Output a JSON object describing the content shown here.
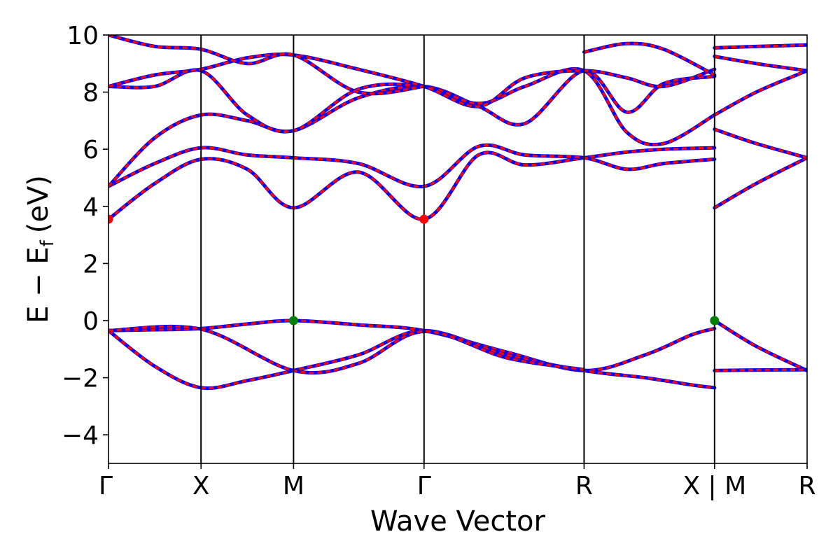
{
  "chart_data": {
    "type": "line",
    "title": "",
    "xlabel": "Wave Vector",
    "ylabel": "E − E",
    "ylabel_sub": "f",
    "ylabel_unit": "(eV)",
    "ylim": [
      -5,
      10
    ],
    "yticks": [
      -4,
      -2,
      0,
      2,
      4,
      6,
      8,
      10
    ],
    "ytick_labels": [
      "−4",
      "−2",
      "0",
      "2",
      "4",
      "6",
      "8",
      "10"
    ],
    "xlim": [
      0,
      7.5
    ],
    "kpoints": [
      {
        "x": 0,
        "label": "Γ"
      },
      {
        "x": 1.0,
        "label": "X"
      },
      {
        "x": 2.0,
        "label": "M"
      },
      {
        "x": 3.41,
        "label": "Γ"
      },
      {
        "x": 5.14,
        "label": "R"
      },
      {
        "x": 6.55,
        "label": "X | M"
      },
      {
        "x": 7.55,
        "label": "R"
      }
    ],
    "colors": {
      "band": "#ff0000",
      "overlay": "#0000ff",
      "cbm": "#ff0000",
      "vbm": "#008000",
      "frame": "#000000"
    },
    "bands": [
      {
        "name": "v1",
        "x": [
          0,
          0.5,
          1.0,
          1.5,
          2.0,
          2.7,
          3.41,
          4.3,
          5.14,
          5.8,
          6.3,
          6.55
        ],
        "y": [
          -0.35,
          -0.32,
          -0.28,
          -0.12,
          0.0,
          -0.15,
          -0.35,
          -1.1,
          -1.75,
          -1.2,
          -0.5,
          -0.28
        ]
      },
      {
        "name": "v2",
        "x": [
          0,
          0.5,
          1.0,
          1.5,
          2.0,
          2.7,
          3.41,
          4.3,
          5.14,
          5.8,
          6.3,
          6.55
        ],
        "y": [
          -0.35,
          -1.6,
          -2.35,
          -2.1,
          -1.75,
          -1.2,
          -0.35,
          -1.2,
          -1.75,
          -2.0,
          -2.25,
          -2.35
        ]
      },
      {
        "name": "v3",
        "x": [
          0,
          1.0,
          2.0,
          2.7,
          3.41,
          4.3,
          5.14
        ],
        "y": [
          -0.35,
          -0.3,
          -1.75,
          -1.5,
          -0.38,
          -1.3,
          -1.72
        ]
      },
      {
        "name": "vr1",
        "x": [
          6.55,
          7.0,
          7.55
        ],
        "y": [
          0.0,
          -0.9,
          -1.75
        ]
      },
      {
        "name": "vr2",
        "x": [
          6.55,
          7.0,
          7.55
        ],
        "y": [
          -1.75,
          -1.73,
          -1.72
        ]
      },
      {
        "name": "c1",
        "x": [
          0,
          0.5,
          1.0,
          1.5,
          2.0,
          2.7,
          3.41,
          4.0,
          4.5,
          5.14,
          5.6,
          6.0,
          6.55
        ],
        "y": [
          3.55,
          4.8,
          5.65,
          5.3,
          3.95,
          5.2,
          3.55,
          5.8,
          5.45,
          5.7,
          5.9,
          6.0,
          6.05
        ]
      },
      {
        "name": "c2",
        "x": [
          0,
          0.5,
          1.0,
          1.5,
          2.0,
          2.7,
          3.41,
          4.0,
          4.5,
          5.14,
          5.6,
          6.0,
          6.55
        ],
        "y": [
          4.7,
          5.5,
          6.05,
          5.8,
          5.7,
          5.5,
          4.7,
          6.1,
          5.8,
          5.7,
          5.3,
          5.5,
          5.65
        ]
      },
      {
        "name": "c3",
        "x": [
          0,
          0.5,
          1.0,
          1.5,
          2.0,
          2.7,
          3.41,
          4.0,
          4.5,
          5.14,
          5.6,
          6.0,
          6.55
        ],
        "y": [
          4.7,
          6.4,
          7.2,
          7.0,
          6.65,
          7.8,
          8.2,
          7.5,
          6.9,
          8.75,
          7.3,
          8.3,
          8.55
        ]
      },
      {
        "name": "c4",
        "x": [
          0,
          0.5,
          1.0,
          1.5,
          2.0,
          2.7,
          3.41,
          4.0,
          4.5,
          5.14,
          5.6,
          6.0,
          6.55
        ],
        "y": [
          8.2,
          8.2,
          8.75,
          7.2,
          6.65,
          8.1,
          8.2,
          7.6,
          8.2,
          8.75,
          6.6,
          6.2,
          7.2
        ]
      },
      {
        "name": "c5",
        "x": [
          0,
          0.5,
          1.0,
          1.5,
          2.0,
          2.7,
          3.41,
          4.0,
          4.5,
          5.14,
          5.6,
          6.0,
          6.55
        ],
        "y": [
          8.2,
          8.6,
          8.8,
          9.2,
          9.3,
          8.8,
          8.2,
          7.5,
          8.5,
          8.75,
          8.5,
          8.2,
          8.8
        ]
      },
      {
        "name": "c6",
        "x": [
          0,
          0.5,
          1.0,
          1.5,
          2.0,
          2.7,
          3.41
        ],
        "y": [
          10.0,
          9.6,
          9.5,
          9.0,
          9.3,
          8.0,
          8.2
        ]
      },
      {
        "name": "c7",
        "x": [
          5.14,
          5.6,
          6.0,
          6.55
        ],
        "y": [
          9.4,
          9.7,
          9.5,
          8.6
        ]
      },
      {
        "name": "cr1",
        "x": [
          6.55,
          7.0,
          7.55
        ],
        "y": [
          3.95,
          4.8,
          5.7
        ]
      },
      {
        "name": "cr2",
        "x": [
          6.55,
          7.0,
          7.55
        ],
        "y": [
          6.7,
          6.2,
          5.7
        ]
      },
      {
        "name": "cr3",
        "x": [
          6.55,
          7.0,
          7.55
        ],
        "y": [
          7.2,
          8.0,
          8.75
        ]
      },
      {
        "name": "cr4",
        "x": [
          6.55,
          7.0,
          7.55
        ],
        "y": [
          9.25,
          9.0,
          8.75
        ]
      },
      {
        "name": "cr5",
        "x": [
          6.55,
          7.0,
          7.55
        ],
        "y": [
          9.55,
          9.6,
          9.65
        ]
      }
    ],
    "markers": [
      {
        "name": "cbm-gamma-start",
        "x": 0,
        "y": 3.55,
        "kind": "cbm"
      },
      {
        "name": "cbm-gamma-mid",
        "x": 3.41,
        "y": 3.55,
        "kind": "cbm"
      },
      {
        "name": "vbm-m",
        "x": 2.0,
        "y": 0.0,
        "kind": "vbm"
      },
      {
        "name": "vbm-x-m",
        "x": 6.55,
        "y": 0.0,
        "kind": "vbm"
      }
    ]
  }
}
